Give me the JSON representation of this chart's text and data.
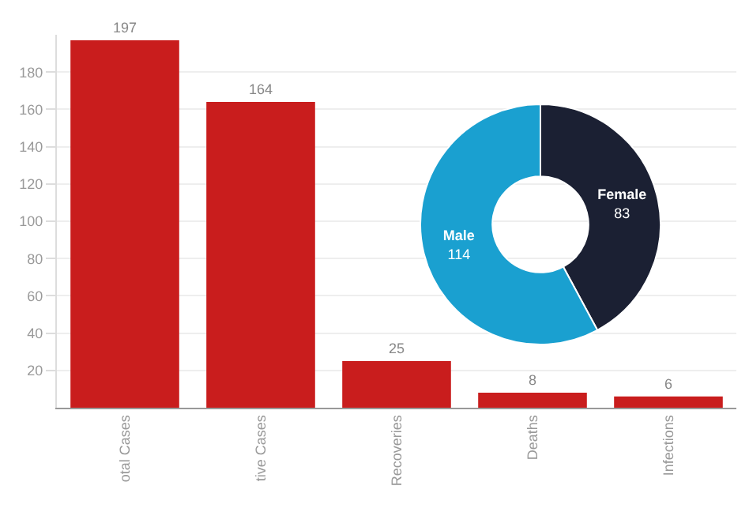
{
  "chart_data": [
    {
      "type": "bar",
      "categories": [
        "otal Cases",
        "tive Cases",
        "Recoveries",
        "Deaths",
        "Infections"
      ],
      "values": [
        197,
        164,
        25,
        8,
        6
      ],
      "color": "#c91d1d",
      "ylim": [
        0,
        200
      ],
      "yticks": [
        20,
        40,
        60,
        80,
        100,
        120,
        140,
        160,
        180
      ],
      "grid": "y",
      "data_labels": true,
      "legend": false
    },
    {
      "type": "donut",
      "categories": [
        "Female",
        "Male"
      ],
      "values": [
        83,
        114
      ],
      "colors": [
        "#1b2033",
        "#1aa0d0"
      ],
      "data_labels": true,
      "legend": false
    }
  ]
}
